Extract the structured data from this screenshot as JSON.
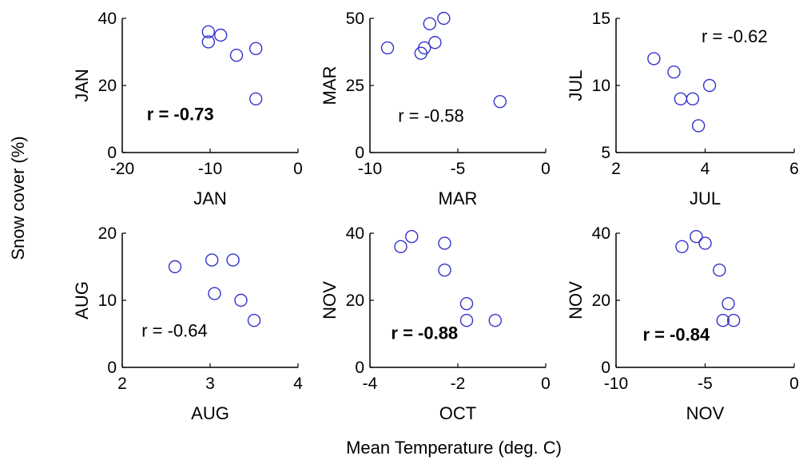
{
  "figure": {
    "shared_ylabel": "Snow cover (%)",
    "shared_xlabel": "Mean Temperature (deg. C)"
  },
  "chart_data": [
    {
      "type": "scatter",
      "xlabel": "JAN",
      "ylabel": "JAN",
      "xlim": [
        -20,
        0
      ],
      "ylim": [
        0,
        40
      ],
      "xticks": [
        -20,
        -10,
        0
      ],
      "yticks": [
        0,
        20,
        40
      ],
      "annotation": {
        "text": "r = -0.73",
        "bold": true
      },
      "marker_color": "#3333cc",
      "points": [
        [
          -10.2,
          36
        ],
        [
          -8.8,
          35
        ],
        [
          -10.2,
          33
        ],
        [
          -7.0,
          29
        ],
        [
          -4.8,
          31
        ],
        [
          -4.8,
          16
        ]
      ]
    },
    {
      "type": "scatter",
      "xlabel": "MAR",
      "ylabel": "MAR",
      "xlim": [
        -10,
        0
      ],
      "ylim": [
        0,
        50
      ],
      "xticks": [
        -10,
        -5,
        0
      ],
      "yticks": [
        0,
        25,
        50
      ],
      "annotation": {
        "text": "r = -0.58",
        "bold": false
      },
      "marker_color": "#3333cc",
      "points": [
        [
          -9.0,
          39
        ],
        [
          -7.1,
          37
        ],
        [
          -6.9,
          39
        ],
        [
          -6.6,
          48
        ],
        [
          -6.3,
          41
        ],
        [
          -5.8,
          50
        ],
        [
          -2.6,
          19
        ]
      ]
    },
    {
      "type": "scatter",
      "xlabel": "JUL",
      "ylabel": "JUL",
      "xlim": [
        2,
        6
      ],
      "ylim": [
        5,
        15
      ],
      "xticks": [
        2,
        4,
        6
      ],
      "yticks": [
        5,
        10,
        15
      ],
      "annotation": {
        "text": "r = -0.62",
        "bold": false
      },
      "marker_color": "#3333cc",
      "points": [
        [
          2.85,
          12
        ],
        [
          3.3,
          11
        ],
        [
          3.45,
          9
        ],
        [
          3.72,
          9
        ],
        [
          3.85,
          7
        ],
        [
          4.1,
          10
        ]
      ]
    },
    {
      "type": "scatter",
      "xlabel": "AUG",
      "ylabel": "AUG",
      "xlim": [
        2,
        4
      ],
      "ylim": [
        0,
        20
      ],
      "xticks": [
        2,
        3,
        4
      ],
      "yticks": [
        0,
        10,
        20
      ],
      "annotation": {
        "text": "r = -0.64",
        "bold": false
      },
      "marker_color": "#3333cc",
      "points": [
        [
          2.6,
          15
        ],
        [
          3.02,
          16
        ],
        [
          3.05,
          11
        ],
        [
          3.26,
          16
        ],
        [
          3.35,
          10
        ],
        [
          3.5,
          7
        ]
      ]
    },
    {
      "type": "scatter",
      "xlabel": "OCT",
      "ylabel": "NOV",
      "xlim": [
        -4,
        0
      ],
      "ylim": [
        0,
        40
      ],
      "xticks": [
        -4,
        -2,
        0
      ],
      "yticks": [
        0,
        20,
        40
      ],
      "annotation": {
        "text": "r = -0.88",
        "bold": true
      },
      "marker_color": "#3333cc",
      "points": [
        [
          -3.3,
          36
        ],
        [
          -3.05,
          39
        ],
        [
          -2.3,
          37
        ],
        [
          -2.3,
          29
        ],
        [
          -1.8,
          19
        ],
        [
          -1.8,
          14
        ],
        [
          -1.15,
          14
        ]
      ]
    },
    {
      "type": "scatter",
      "xlabel": "NOV",
      "ylabel": "NOV",
      "xlim": [
        -10,
        0
      ],
      "ylim": [
        0,
        40
      ],
      "xticks": [
        -10,
        -5,
        0
      ],
      "yticks": [
        0,
        20,
        40
      ],
      "annotation": {
        "text": "r = -0.84",
        "bold": true
      },
      "marker_color": "#3333cc",
      "points": [
        [
          -6.3,
          36
        ],
        [
          -5.5,
          39
        ],
        [
          -5.0,
          37
        ],
        [
          -4.2,
          29
        ],
        [
          -3.7,
          19
        ],
        [
          -4.0,
          14
        ],
        [
          -3.4,
          14
        ]
      ]
    }
  ]
}
